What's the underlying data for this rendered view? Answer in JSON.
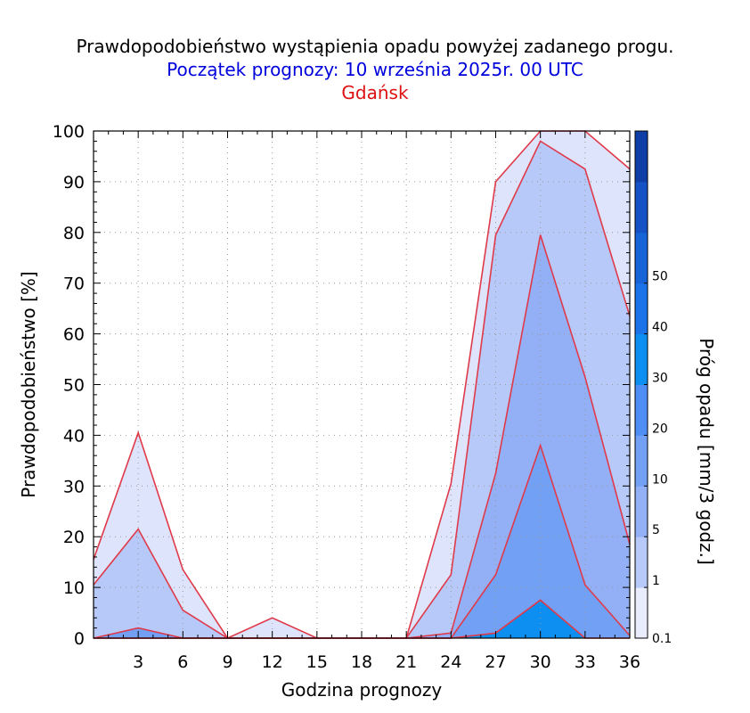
{
  "titles": {
    "line1": "Prawdopodobieństwo wystąpienia opadu powyżej zadanego progu.",
    "line2": "Początek prognozy: 10 września 2025r. 00 UTC",
    "line3": "Gdańsk"
  },
  "colors": {
    "title_line1": "#000000",
    "title_line2": "#0000dd",
    "title_line3": "#dd1111",
    "contour_line": "#e03a4a",
    "gridline": "#999999"
  },
  "chart_data": {
    "type": "area",
    "xlabel": "Godzina prognozy",
    "ylabel": "Prawdopodobieństwo [%]",
    "colorbar_label": "Próg opadu [mm/3 godz.]",
    "xlim": [
      0,
      36
    ],
    "ylim": [
      0,
      100
    ],
    "x_ticks": [
      3,
      6,
      9,
      12,
      15,
      18,
      21,
      24,
      27,
      30,
      33,
      36
    ],
    "y_ticks": [
      0,
      10,
      20,
      30,
      40,
      50,
      60,
      70,
      80,
      90,
      100
    ],
    "grid": true,
    "x": [
      0,
      3,
      6,
      9,
      12,
      15,
      18,
      21,
      24,
      27,
      30,
      33,
      36
    ],
    "series": [
      {
        "name": "0.1",
        "color": "#dde4fb",
        "values": [
          15.5,
          40.5,
          13.5,
          0,
          4,
          0,
          0,
          0,
          30.5,
          90,
          100,
          100,
          92.5
        ]
      },
      {
        "name": "1",
        "color": "#b7c9f8",
        "values": [
          10.5,
          21.5,
          5.5,
          0,
          0,
          0,
          0,
          0,
          12.5,
          79.5,
          98,
          92.5,
          63.5
        ]
      },
      {
        "name": "5",
        "color": "#93aff5",
        "values": [
          0,
          0,
          0,
          0,
          0,
          0,
          0,
          0,
          1,
          32.5,
          79.5,
          51.5,
          18.5
        ]
      },
      {
        "name": "10",
        "color": "#72a0f4",
        "values": [
          0,
          2,
          0,
          0,
          0,
          0,
          0,
          0,
          0,
          12.5,
          38,
          10.5,
          0.5
        ]
      },
      {
        "name": "20",
        "color": "#0c8ff0",
        "values": [
          0,
          0,
          0,
          0,
          0,
          0,
          0,
          0,
          0,
          1,
          7.5,
          0,
          0
        ]
      }
    ],
    "colorbar": {
      "labels": [
        "0.1",
        "1",
        "5",
        "10",
        "20",
        "30",
        "40",
        "50"
      ],
      "colors": [
        "#e8ecfc",
        "#b7c9f8",
        "#93aff5",
        "#72a0f4",
        "#4f8ef5",
        "#0c8ff0",
        "#1a73e8",
        "#1664d8",
        "#1452c6",
        "#0f3fa6"
      ]
    }
  }
}
